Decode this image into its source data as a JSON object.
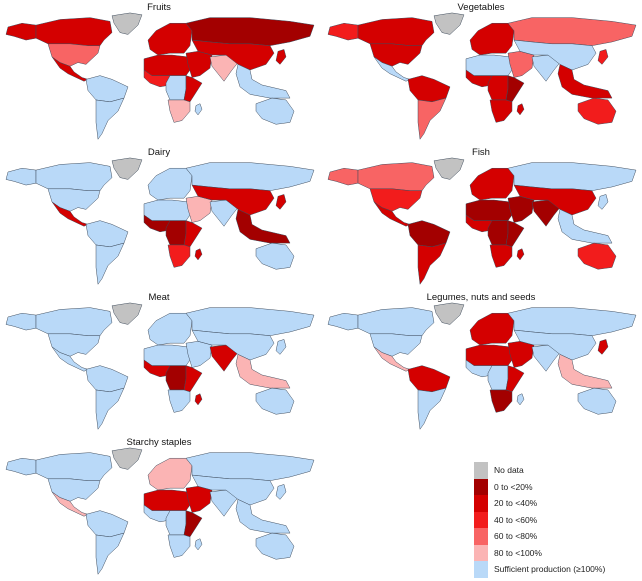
{
  "legend": {
    "items": [
      {
        "key": "nodata",
        "label": "No data",
        "color": "#c2c2c2"
      },
      {
        "key": "c0",
        "label": "0 to <20%",
        "color": "#a30000"
      },
      {
        "key": "c20",
        "label": "20 to <40%",
        "color": "#d40000"
      },
      {
        "key": "c40",
        "label": "40 to <60%",
        "color": "#f21c1c"
      },
      {
        "key": "c60",
        "label": "60 to <80%",
        "color": "#f86464"
      },
      {
        "key": "c80",
        "label": "80 to <100%",
        "color": "#fbb4b4"
      },
      {
        "key": "ok",
        "label": "Sufficient production (≥100%)",
        "color": "#b9d9f8"
      }
    ]
  },
  "panels": [
    {
      "title": "Fruits",
      "regions": {
        "greenland": "nodata",
        "alaska": "c20",
        "canada": "c20",
        "usa": "c60",
        "central_america": "c20",
        "south_america_north": "ok",
        "south_america_south": "ok",
        "europe": "c20",
        "russia": "c0",
        "north_africa": "c20",
        "west_africa": "c40",
        "central_africa": "ok",
        "east_africa": "c20",
        "southern_africa": "c80",
        "madagascar": "ok",
        "middle_east": "c20",
        "south_asia": "c80",
        "china": "c20",
        "southeast_asia": "ok",
        "australia": "ok",
        "japan": "c20"
      }
    },
    {
      "title": "Vegetables",
      "regions": {
        "greenland": "nodata",
        "alaska": "c40",
        "canada": "c20",
        "usa": "c20",
        "central_america": "ok",
        "south_america_north": "c20",
        "south_america_south": "c60",
        "europe": "c20",
        "russia": "c60",
        "north_africa": "ok",
        "west_africa": "c20",
        "central_africa": "c20",
        "east_africa": "c0",
        "southern_africa": "c20",
        "madagascar": "c20",
        "middle_east": "c60",
        "south_asia": "ok",
        "china": "ok",
        "southeast_asia": "c20",
        "australia": "c40",
        "japan": "c40"
      }
    },
    {
      "title": "Dairy",
      "regions": {
        "greenland": "nodata",
        "alaska": "ok",
        "canada": "ok",
        "usa": "ok",
        "central_america": "c20",
        "south_america_north": "ok",
        "south_america_south": "ok",
        "europe": "ok",
        "russia": "ok",
        "north_africa": "ok",
        "west_africa": "c0",
        "central_africa": "c0",
        "east_africa": "c20",
        "southern_africa": "c40",
        "madagascar": "c20",
        "middle_east": "c80",
        "south_asia": "ok",
        "china": "c20",
        "southeast_asia": "c0",
        "australia": "ok",
        "japan": "c20"
      }
    },
    {
      "title": "Fish",
      "regions": {
        "greenland": "nodata",
        "alaska": "c60",
        "canada": "c60",
        "usa": "c40",
        "central_america": "c20",
        "south_america_north": "c0",
        "south_america_south": "c20",
        "europe": "c20",
        "russia": "ok",
        "north_africa": "c0",
        "west_africa": "c20",
        "central_africa": "c0",
        "east_africa": "c0",
        "southern_africa": "c20",
        "madagascar": "c20",
        "middle_east": "c0",
        "south_asia": "c0",
        "china": "c20",
        "southeast_asia": "ok",
        "australia": "c40",
        "japan": "ok"
      }
    },
    {
      "title": "Meat",
      "regions": {
        "greenland": "nodata",
        "alaska": "ok",
        "canada": "ok",
        "usa": "ok",
        "central_america": "ok",
        "south_america_north": "ok",
        "south_america_south": "ok",
        "europe": "ok",
        "russia": "ok",
        "north_africa": "ok",
        "west_africa": "c20",
        "central_africa": "c0",
        "east_africa": "c20",
        "southern_africa": "ok",
        "madagascar": "c20",
        "middle_east": "ok",
        "south_asia": "c20",
        "china": "ok",
        "southeast_asia": "c80",
        "australia": "ok",
        "japan": "ok"
      }
    },
    {
      "title": "Legumes, nuts and seeds",
      "regions": {
        "greenland": "nodata",
        "alaska": "ok",
        "canada": "ok",
        "usa": "ok",
        "central_america": "c80",
        "south_america_north": "c20",
        "south_america_south": "ok",
        "europe": "c20",
        "russia": "ok",
        "north_africa": "c20",
        "west_africa": "ok",
        "central_africa": "ok",
        "east_africa": "c20",
        "southern_africa": "c0",
        "madagascar": "ok",
        "middle_east": "c20",
        "south_asia": "ok",
        "china": "ok",
        "southeast_asia": "c80",
        "australia": "ok",
        "japan": "c20"
      }
    },
    {
      "title": "Starchy staples",
      "regions": {
        "greenland": "nodata",
        "alaska": "ok",
        "canada": "ok",
        "usa": "ok",
        "central_america": "c80",
        "south_america_north": "ok",
        "south_america_south": "ok",
        "europe": "c80",
        "russia": "ok",
        "north_africa": "c20",
        "west_africa": "ok",
        "central_africa": "ok",
        "east_africa": "c0",
        "southern_africa": "ok",
        "madagascar": "ok",
        "middle_east": "c20",
        "south_asia": "ok",
        "china": "ok",
        "southeast_asia": "ok",
        "australia": "ok",
        "japan": "ok"
      }
    }
  ]
}
